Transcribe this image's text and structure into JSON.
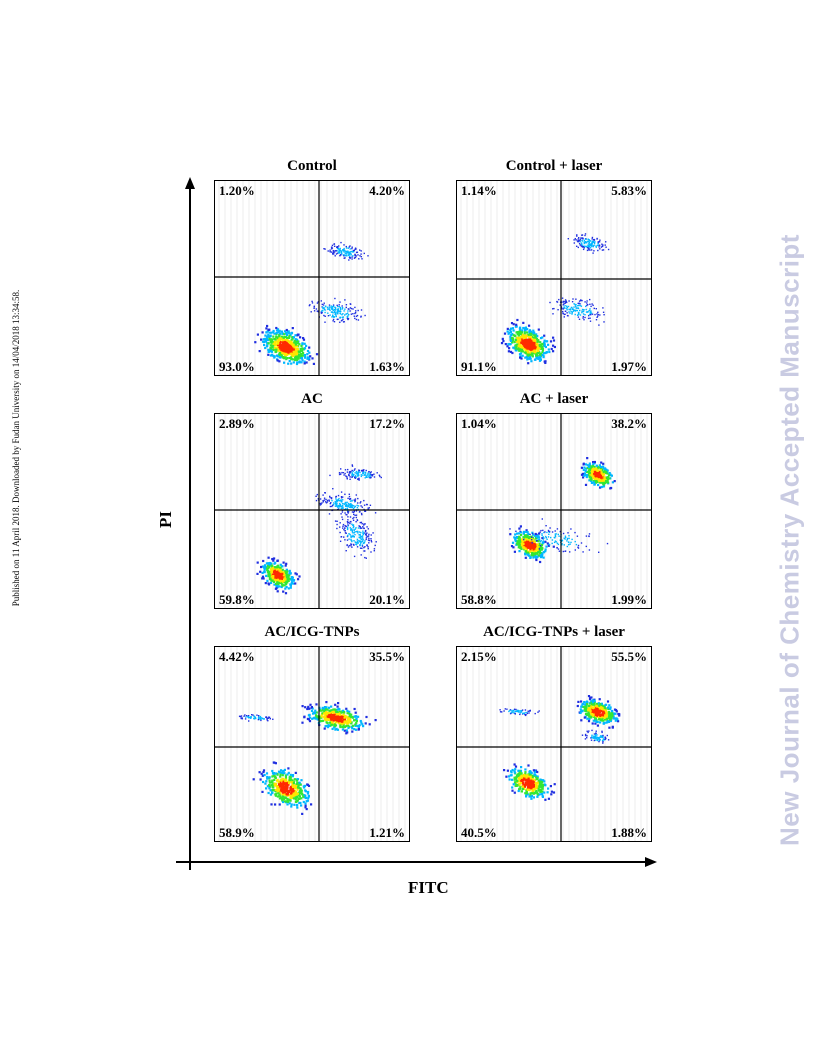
{
  "side_note": "Published on 11 April 2018. Downloaded by Fudan University on 14/04/2018 13:34:58.",
  "watermark": "New Journal of Chemistry Accepted Manuscript",
  "figure": {
    "y_axis_title": "PI",
    "x_axis_title": "FITC",
    "panels": [
      {
        "title": "Control",
        "q_upper_left": "1.20%",
        "q_upper_right": "4.20%",
        "q_lower_left": "93.0%",
        "q_lower_right": "1.63%"
      },
      {
        "title": "Control + laser",
        "q_upper_left": "1.14%",
        "q_upper_right": "5.83%",
        "q_lower_left": "91.1%",
        "q_lower_right": "1.97%"
      },
      {
        "title": "AC",
        "q_upper_left": "2.89%",
        "q_upper_right": "17.2%",
        "q_lower_left": "59.8%",
        "q_lower_right": "20.1%"
      },
      {
        "title": "AC + laser",
        "q_upper_left": "1.04%",
        "q_upper_right": "38.2%",
        "q_lower_left": "58.8%",
        "q_lower_right": "1.99%"
      },
      {
        "title": "AC/ICG-TNPs",
        "q_upper_left": "4.42%",
        "q_upper_right": "35.5%",
        "q_lower_left": "58.9%",
        "q_lower_right": "1.21%"
      },
      {
        "title": "AC/ICG-TNPs + laser",
        "q_upper_left": "2.15%",
        "q_upper_right": "55.5%",
        "q_lower_left": "40.5%",
        "q_lower_right": "1.88%"
      }
    ]
  },
  "chart_data": {
    "type": "scatter",
    "xlabel": "FITC",
    "ylabel": "PI",
    "density_colors": [
      "#1f2ee0",
      "#00b7ff",
      "#33e633",
      "#ffe600",
      "#ff2a00"
    ],
    "panels": [
      {
        "title": "Control",
        "quadrants": {
          "upper_left": 1.2,
          "upper_right": 4.2,
          "lower_left": 93.0,
          "lower_right": 1.63
        }
      },
      {
        "title": "Control + laser",
        "quadrants": {
          "upper_left": 1.14,
          "upper_right": 5.83,
          "lower_left": 91.1,
          "lower_right": 1.97
        }
      },
      {
        "title": "AC",
        "quadrants": {
          "upper_left": 2.89,
          "upper_right": 17.2,
          "lower_left": 59.8,
          "lower_right": 20.1
        }
      },
      {
        "title": "AC + laser",
        "quadrants": {
          "upper_left": 1.04,
          "upper_right": 38.2,
          "lower_left": 58.8,
          "lower_right": 1.99
        }
      },
      {
        "title": "AC/ICG-TNPs",
        "quadrants": {
          "upper_left": 4.42,
          "upper_right": 35.5,
          "lower_left": 58.9,
          "lower_right": 1.21
        }
      },
      {
        "title": "AC/ICG-TNPs + laser",
        "quadrants": {
          "upper_left": 2.15,
          "upper_right": 55.5,
          "lower_left": 40.5,
          "lower_right": 1.88
        }
      }
    ]
  }
}
